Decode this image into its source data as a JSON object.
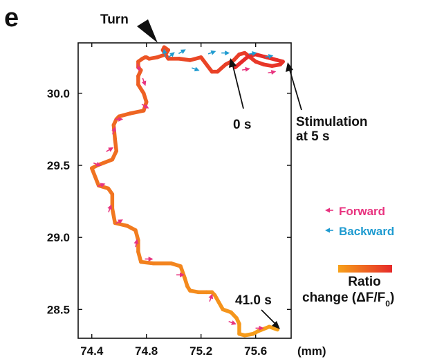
{
  "panel_label": "e",
  "chart_data": {
    "type": "line",
    "xlabel": "",
    "ylabel": "",
    "x_unit": "(mm)",
    "xlim": [
      74.3,
      75.86
    ],
    "ylim": [
      28.3,
      30.35
    ],
    "xticks": [
      74.4,
      74.8,
      75.2,
      75.6
    ],
    "xtick_labels": [
      "74.4",
      "74.8",
      "75.2",
      "75.6"
    ],
    "yticks": [
      28.5,
      29.0,
      29.5,
      30.0
    ],
    "ytick_labels": [
      "28.5",
      "29.0",
      "29.5",
      "30.0"
    ],
    "grid": false,
    "series": [
      {
        "color_start": "#f7a11a",
        "color_end": "#e62a2a",
        "x": [
          75.76,
          75.7,
          75.62,
          75.58,
          75.52,
          75.48,
          75.48,
          75.46,
          75.42,
          75.36,
          75.33,
          75.3,
          75.28,
          75.24,
          75.18,
          75.12,
          75.1,
          75.08,
          75.05,
          74.98,
          74.92,
          74.85,
          74.76,
          74.74,
          74.74,
          74.72,
          74.66,
          74.57,
          74.55,
          74.55,
          74.52,
          74.45,
          74.4,
          74.44,
          74.55,
          74.58,
          74.57,
          74.56,
          74.58,
          74.6,
          74.68,
          74.78,
          74.8,
          74.78,
          74.74,
          74.74,
          74.76,
          74.74,
          74.74,
          74.77,
          74.79,
          74.8,
          74.82,
          74.88,
          74.94,
          74.96,
          74.93,
          74.92,
          74.96,
          75.04,
          75.12,
          75.2,
          75.24,
          75.28,
          75.32,
          75.38,
          75.44,
          75.48,
          75.52,
          75.56,
          75.6,
          75.66,
          75.72,
          75.78,
          75.8,
          75.76,
          75.68,
          75.6,
          75.55,
          75.5,
          75.45
        ],
        "y": [
          28.36,
          28.38,
          28.35,
          28.33,
          28.32,
          28.33,
          28.4,
          28.44,
          28.48,
          28.5,
          28.55,
          28.6,
          28.62,
          28.62,
          28.62,
          28.63,
          28.66,
          28.72,
          28.8,
          28.82,
          28.82,
          28.82,
          28.83,
          28.9,
          28.98,
          29.05,
          29.08,
          29.1,
          29.2,
          29.3,
          29.34,
          29.36,
          29.48,
          29.5,
          29.54,
          29.6,
          29.68,
          29.78,
          29.82,
          29.84,
          29.86,
          29.88,
          29.94,
          30.0,
          30.06,
          30.12,
          30.16,
          30.18,
          30.22,
          30.24,
          30.25,
          30.25,
          30.24,
          30.25,
          30.27,
          30.3,
          30.32,
          30.3,
          30.24,
          30.24,
          30.23,
          30.25,
          30.2,
          30.15,
          30.15,
          30.2,
          30.23,
          30.27,
          30.28,
          30.25,
          30.22,
          30.2,
          30.19,
          30.2,
          30.22,
          30.23,
          30.25,
          30.27,
          30.26,
          30.22,
          30.18
        ]
      }
    ],
    "annotations": [
      {
        "text": "Turn",
        "x": 74.97,
        "y": 30.33
      },
      {
        "text": "0 s",
        "x": 75.45,
        "y": 30.18
      },
      {
        "text": "Stimulation",
        "text2": "at 5 s",
        "x": 75.8,
        "y": 30.19
      },
      {
        "text": "41.0 s",
        "x": 75.76,
        "y": 28.36
      }
    ],
    "forward_arrows": [
      {
        "x": 75.65,
        "y": 28.37,
        "angle": 180
      },
      {
        "x": 75.45,
        "y": 28.4,
        "angle": 200
      },
      {
        "x": 75.28,
        "y": 28.6,
        "angle": 110
      },
      {
        "x": 75.07,
        "y": 28.74,
        "angle": 180
      },
      {
        "x": 74.84,
        "y": 28.85,
        "angle": 180
      },
      {
        "x": 74.73,
        "y": 28.98,
        "angle": 100
      },
      {
        "x": 74.62,
        "y": 29.12,
        "angle": 150
      },
      {
        "x": 74.54,
        "y": 29.22,
        "angle": 110
      },
      {
        "x": 74.49,
        "y": 29.37,
        "angle": 160
      },
      {
        "x": 74.46,
        "y": 29.5,
        "angle": 200
      },
      {
        "x": 74.55,
        "y": 29.62,
        "angle": 150
      },
      {
        "x": 74.57,
        "y": 29.76,
        "angle": 110
      },
      {
        "x": 74.62,
        "y": 29.82,
        "angle": 180
      },
      {
        "x": 74.81,
        "y": 29.9,
        "angle": 210
      },
      {
        "x": 74.79,
        "y": 30.06,
        "angle": 250
      },
      {
        "x": 74.75,
        "y": 30.16,
        "angle": 250
      },
      {
        "x": 75.55,
        "y": 30.17,
        "angle": 170
      },
      {
        "x": 75.74,
        "y": 30.15,
        "angle": 170
      }
    ],
    "backward_arrows": [
      {
        "x": 74.93,
        "y": 30.3,
        "angle": 80
      },
      {
        "x": 75.0,
        "y": 30.28,
        "angle": 140
      },
      {
        "x": 75.08,
        "y": 30.3,
        "angle": 150
      },
      {
        "x": 75.3,
        "y": 30.29,
        "angle": 160
      },
      {
        "x": 75.4,
        "y": 30.28,
        "angle": 180
      },
      {
        "x": 75.6,
        "y": 30.28,
        "angle": 170
      },
      {
        "x": 75.72,
        "y": 30.26,
        "angle": 170
      },
      {
        "x": 75.18,
        "y": 30.16,
        "angle": 200
      }
    ]
  },
  "legend": {
    "forward_label": "Forward",
    "backward_label": "Backward",
    "forward_color": "#e8337f",
    "backward_color": "#1f9bd0"
  },
  "colorbar": {
    "label_line1": "Ratio",
    "label_line2_prefix": "change (",
    "label_line2_delta": "Δ",
    "label_line2_f": "F/F",
    "label_line2_sub": "0",
    "label_line2_suffix": ")",
    "color_low": "#f7a11a",
    "color_high": "#e62a2a"
  }
}
